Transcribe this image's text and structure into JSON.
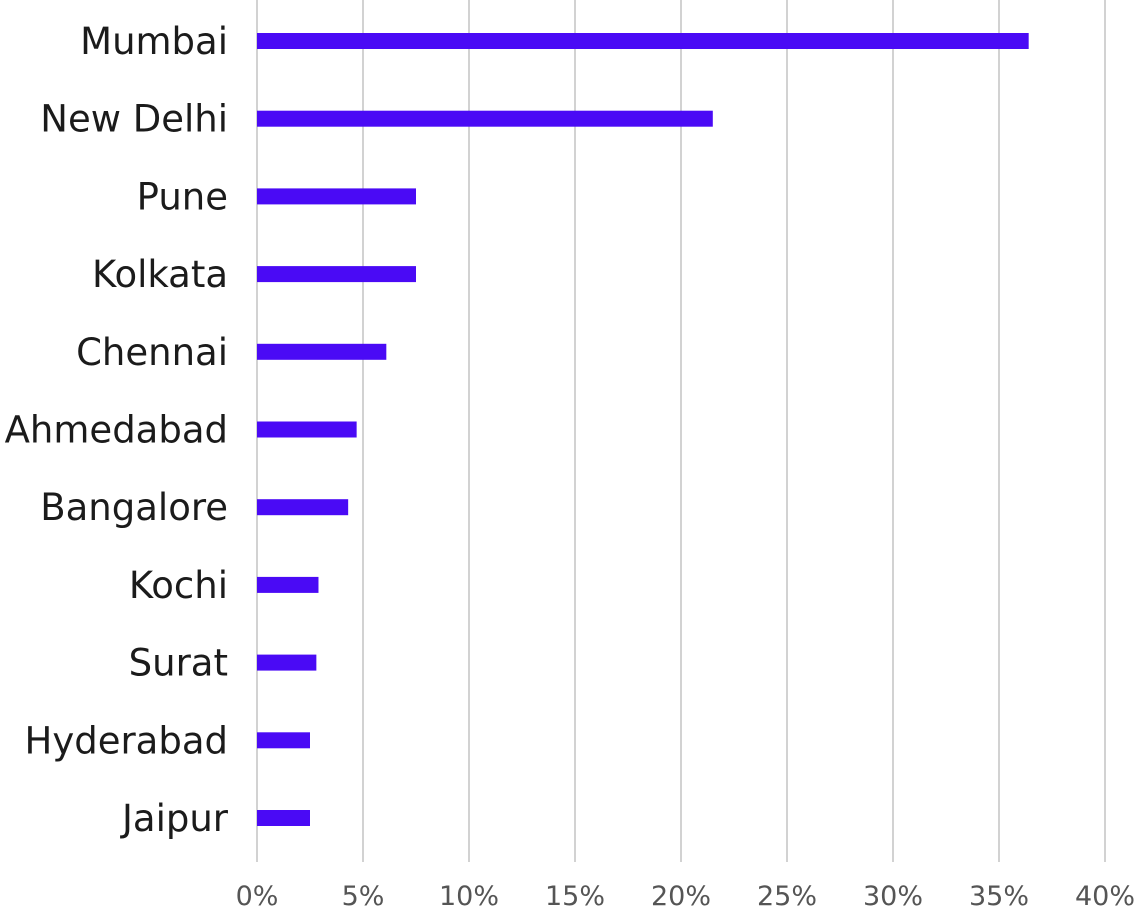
{
  "chart_data": {
    "type": "bar",
    "orientation": "horizontal",
    "title": "",
    "xlabel": "",
    "ylabel": "",
    "categories": [
      "Mumbai",
      "New Delhi",
      "Pune",
      "Kolkata",
      "Chennai",
      "Ahmedabad",
      "Bangalore",
      "Kochi",
      "Surat",
      "Hyderabad",
      "Jaipur"
    ],
    "values": [
      36.4,
      21.5,
      7.5,
      7.5,
      6.1,
      4.7,
      4.3,
      2.9,
      2.8,
      2.5,
      2.5
    ],
    "value_unit": "%",
    "xlim": [
      0,
      40
    ],
    "x_ticks": [
      0,
      5,
      10,
      15,
      20,
      25,
      30,
      35,
      40
    ],
    "x_tick_labels": [
      "0%",
      "5%",
      "10%",
      "15%",
      "20%",
      "25%",
      "30%",
      "35%",
      "40%"
    ],
    "grid": "vertical",
    "legend": "none",
    "colors": {
      "bar": "#4A0AF5",
      "grid": "#C4C4C4",
      "category_text": "#1B1B1B",
      "tick_text": "#555555"
    }
  }
}
